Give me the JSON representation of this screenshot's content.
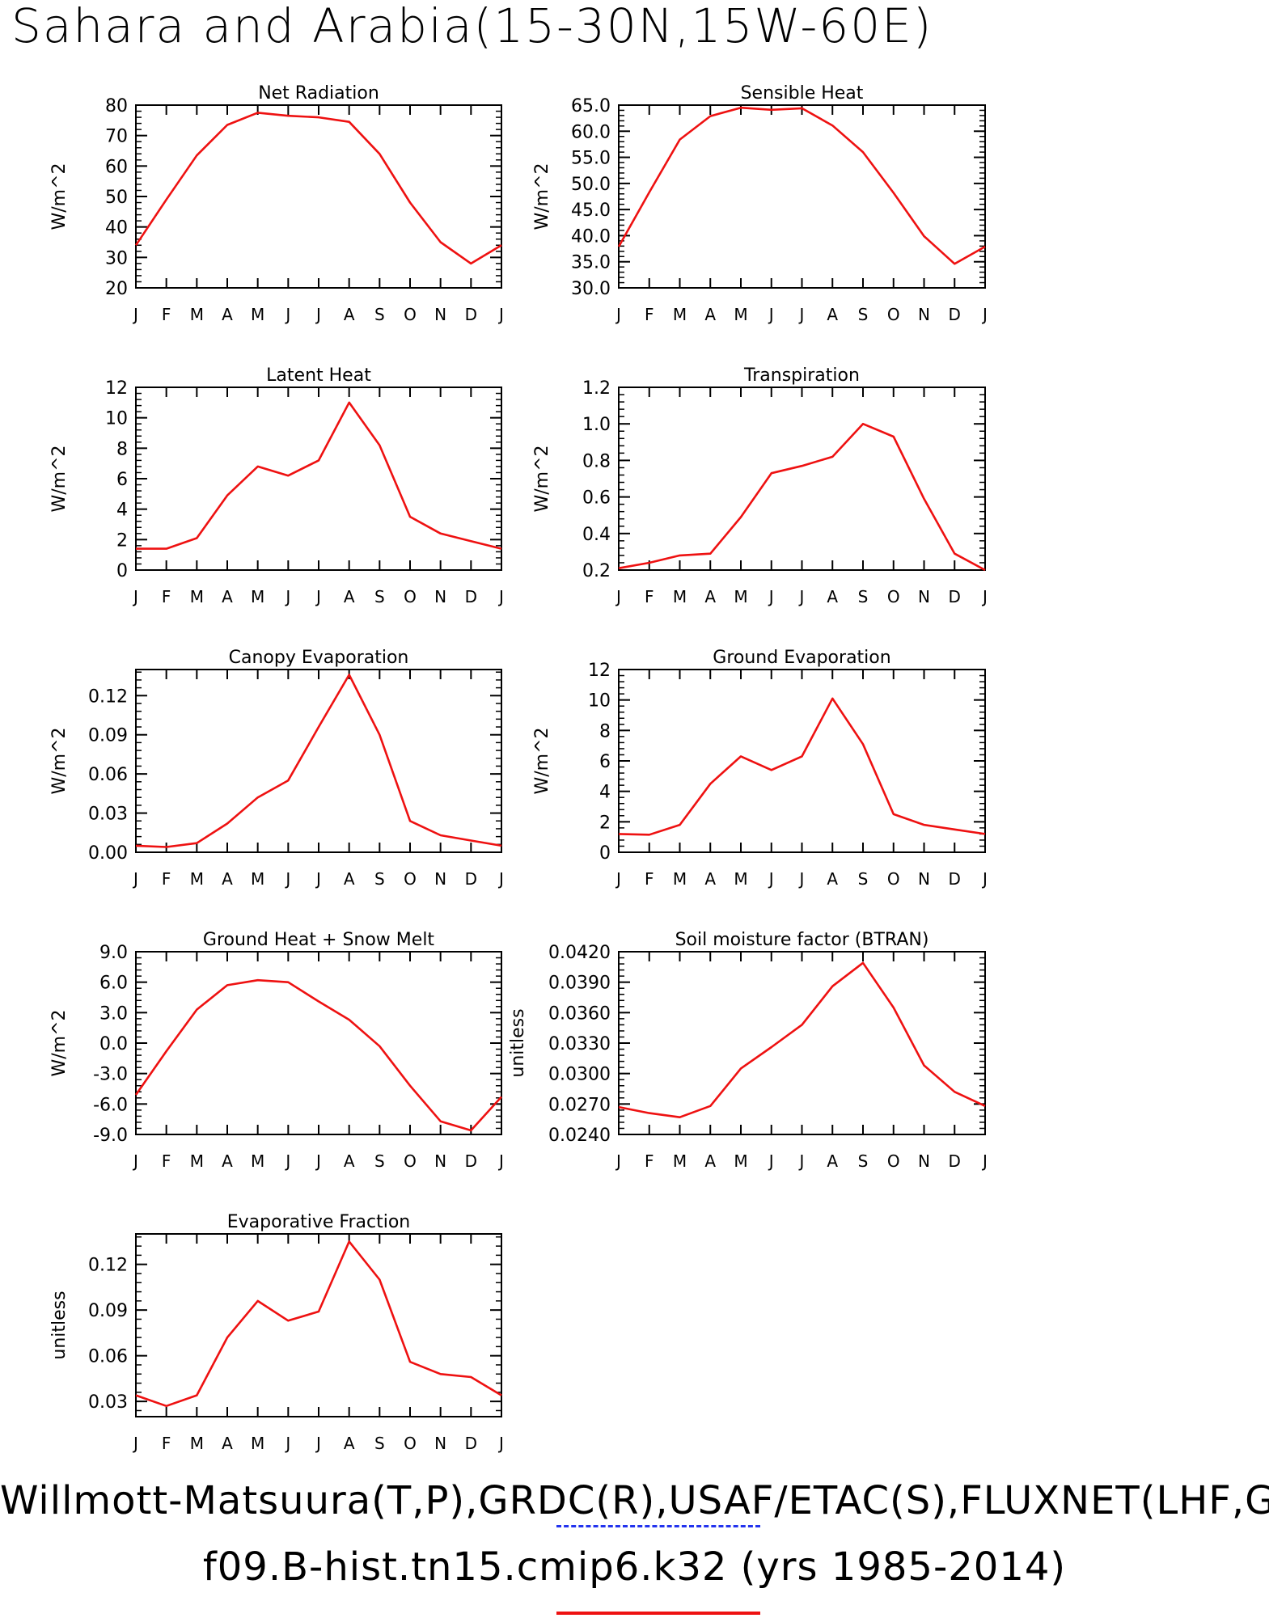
{
  "figure": {
    "title": "Sahara and Arabia(15-30N,15W-60E)",
    "footer_line1": "Willmott-Matsuura(T,P),GRDC(R),USAF/ETAC(S),FLUXNET(LHF,GF",
    "footer_line2": "f09.B-hist.tn15.cmip6.k32 (yrs 1985-2014)",
    "obs_line_color": "#2233ee",
    "model_line_color": "#ee1111"
  },
  "chart_data": [
    {
      "type": "line",
      "title": "Net Radiation",
      "ylabel": "W/m^2",
      "x": [
        "J",
        "F",
        "M",
        "A",
        "M",
        "J",
        "J",
        "A",
        "S",
        "O",
        "N",
        "D",
        "J"
      ],
      "yticks": [
        "20",
        "30",
        "40",
        "50",
        "60",
        "70",
        "80"
      ],
      "ylim": [
        20,
        80
      ],
      "series": [
        {
          "values": [
            34,
            49,
            63.5,
            73.5,
            77.5,
            76.5,
            76,
            74.5,
            64,
            48,
            35,
            28,
            34
          ]
        }
      ]
    },
    {
      "type": "line",
      "title": "Sensible Heat",
      "ylabel": "W/m^2",
      "x": [
        "J",
        "F",
        "M",
        "A",
        "M",
        "J",
        "J",
        "A",
        "S",
        "O",
        "N",
        "D",
        "J"
      ],
      "yticks": [
        "30.0",
        "35.0",
        "40.0",
        "45.0",
        "50.0",
        "55.0",
        "60.0",
        "65.0"
      ],
      "ylim": [
        30,
        65
      ],
      "series": [
        {
          "values": [
            37.9,
            48.3,
            58.4,
            62.9,
            64.5,
            64.1,
            64.4,
            61.1,
            56,
            48.2,
            39.9,
            34.6,
            37.9
          ]
        }
      ]
    },
    {
      "type": "line",
      "title": "Latent Heat",
      "ylabel": "W/m^2",
      "x": [
        "J",
        "F",
        "M",
        "A",
        "M",
        "J",
        "J",
        "A",
        "S",
        "O",
        "N",
        "D",
        "J"
      ],
      "yticks": [
        "0",
        "2",
        "4",
        "6",
        "8",
        "10",
        "12"
      ],
      "ylim": [
        0,
        12
      ],
      "series": [
        {
          "values": [
            1.4,
            1.4,
            2.1,
            4.9,
            6.8,
            6.2,
            7.2,
            11,
            8.2,
            3.5,
            2.4,
            1.9,
            1.4
          ]
        }
      ]
    },
    {
      "type": "line",
      "title": "Transpiration",
      "ylabel": "W/m^2",
      "x": [
        "J",
        "F",
        "M",
        "A",
        "M",
        "J",
        "J",
        "A",
        "S",
        "O",
        "N",
        "D",
        "J"
      ],
      "yticks": [
        "0.2",
        "0.4",
        "0.6",
        "0.8",
        "1.0",
        "1.2"
      ],
      "ylim": [
        0.2,
        1.2
      ],
      "series": [
        {
          "values": [
            0.21,
            0.24,
            0.28,
            0.29,
            0.49,
            0.73,
            0.77,
            0.82,
            1.0,
            0.93,
            0.59,
            0.29,
            0.2
          ]
        }
      ]
    },
    {
      "type": "line",
      "title": "Canopy Evaporation",
      "ylabel": "W/m^2",
      "x": [
        "J",
        "F",
        "M",
        "A",
        "M",
        "J",
        "J",
        "A",
        "S",
        "O",
        "N",
        "D",
        "J"
      ],
      "yticks": [
        "0.00",
        "0.03",
        "0.06",
        "0.09",
        "0.12"
      ],
      "ylim": [
        0,
        0.14
      ],
      "series": [
        {
          "values": [
            0.005,
            0.004,
            0.007,
            0.022,
            0.042,
            0.055,
            0.096,
            0.136,
            0.09,
            0.024,
            0.013,
            0.009,
            0.005
          ]
        }
      ]
    },
    {
      "type": "line",
      "title": "Ground Evaporation",
      "ylabel": "W/m^2",
      "x": [
        "J",
        "F",
        "M",
        "A",
        "M",
        "J",
        "J",
        "A",
        "S",
        "O",
        "N",
        "D",
        "J"
      ],
      "yticks": [
        "0",
        "2",
        "4",
        "6",
        "8",
        "10",
        "12"
      ],
      "ylim": [
        0,
        12
      ],
      "series": [
        {
          "values": [
            1.2,
            1.15,
            1.8,
            4.5,
            6.3,
            5.4,
            6.3,
            10.1,
            7.1,
            2.5,
            1.8,
            1.5,
            1.2
          ]
        }
      ]
    },
    {
      "type": "line",
      "title": "Ground Heat + Snow Melt",
      "ylabel": "W/m^2",
      "x": [
        "J",
        "F",
        "M",
        "A",
        "M",
        "J",
        "J",
        "A",
        "S",
        "O",
        "N",
        "D",
        "J"
      ],
      "yticks": [
        "-9.0",
        "-6.0",
        "-3.0",
        "0.0",
        "3.0",
        "6.0",
        "9.0"
      ],
      "ylim": [
        -9,
        9
      ],
      "series": [
        {
          "values": [
            -5.1,
            -0.8,
            3.3,
            5.7,
            6.2,
            6.0,
            4.1,
            2.3,
            -0.3,
            -4.2,
            -7.7,
            -8.6,
            -5.3
          ]
        }
      ]
    },
    {
      "type": "line",
      "title": "Soil moisture factor (BTRAN)",
      "ylabel": "unitless",
      "x": [
        "J",
        "F",
        "M",
        "A",
        "M",
        "J",
        "J",
        "A",
        "S",
        "O",
        "N",
        "D",
        "J"
      ],
      "yticks": [
        "0.0240",
        "0.0270",
        "0.0300",
        "0.0330",
        "0.0360",
        "0.0390",
        "0.0420"
      ],
      "ylim": [
        0.024,
        0.042
      ],
      "series": [
        {
          "values": [
            0.0267,
            0.0261,
            0.0257,
            0.0268,
            0.0305,
            0.0326,
            0.0348,
            0.0386,
            0.0409,
            0.0365,
            0.0308,
            0.0282,
            0.0268
          ]
        }
      ]
    },
    {
      "type": "line",
      "title": "Evaporative Fraction",
      "ylabel": "unitless",
      "x": [
        "J",
        "F",
        "M",
        "A",
        "M",
        "J",
        "J",
        "A",
        "S",
        "O",
        "N",
        "D",
        "J"
      ],
      "yticks": [
        "0.03",
        "0.06",
        "0.09",
        "0.12"
      ],
      "ylim": [
        0.02,
        0.14
      ],
      "series": [
        {
          "values": [
            0.034,
            0.027,
            0.034,
            0.072,
            0.096,
            0.083,
            0.089,
            0.135,
            0.11,
            0.056,
            0.048,
            0.046,
            0.034
          ]
        }
      ]
    }
  ]
}
